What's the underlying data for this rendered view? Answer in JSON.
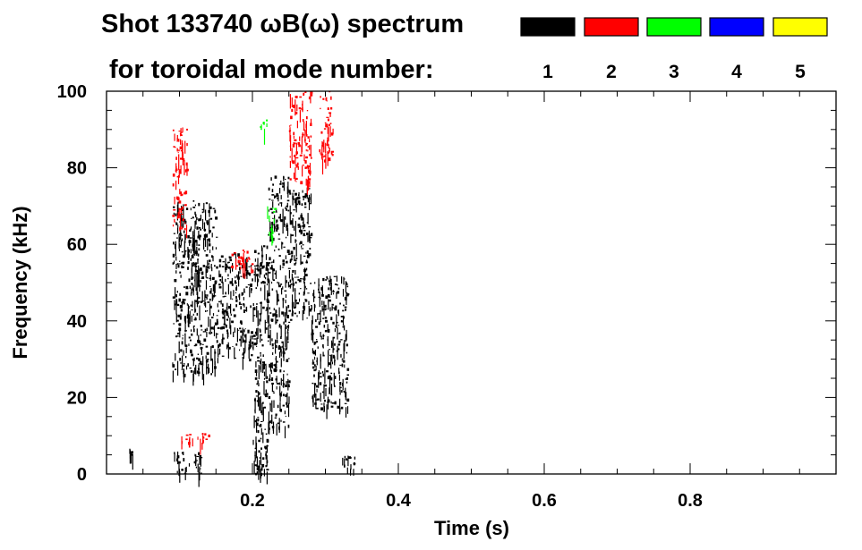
{
  "title_line1": "Shot 133740 ωB(ω) spectrum",
  "title_line2": "for toroidal mode number:",
  "chart_data": {
    "type": "heatmap",
    "title": "Shot 133740 ωB(ω) spectrum",
    "subtitle": "for toroidal mode number:",
    "xlabel": "Time (s)",
    "ylabel": "Frequency (kHz)",
    "xlim": [
      0.0,
      1.0
    ],
    "ylim": [
      0,
      100
    ],
    "xticks": [
      {
        "value": 0.2,
        "label": "0.2"
      },
      {
        "value": 0.4,
        "label": "0.4"
      },
      {
        "value": 0.6,
        "label": "0.6"
      },
      {
        "value": 0.8,
        "label": "0.8"
      }
    ],
    "yticks": [
      {
        "value": 0,
        "label": "0"
      },
      {
        "value": 20,
        "label": "20"
      },
      {
        "value": 40,
        "label": "40"
      },
      {
        "value": 60,
        "label": "60"
      },
      {
        "value": 80,
        "label": "80"
      },
      {
        "value": 100,
        "label": "100"
      }
    ],
    "legend_placement": "top-right",
    "modes": [
      {
        "label": "1",
        "color": "#000000"
      },
      {
        "label": "2",
        "color": "#ff0000"
      },
      {
        "label": "3",
        "color": "#00ff00"
      },
      {
        "label": "4",
        "color": "#0000ff"
      },
      {
        "label": "5",
        "color": "#ffff00"
      }
    ],
    "regions": [
      {
        "mode": "1",
        "t": [
          0.03,
          0.04
        ],
        "f": [
          4,
          7
        ]
      },
      {
        "mode": "1",
        "t": [
          0.09,
          0.15
        ],
        "f": [
          26,
          72
        ]
      },
      {
        "mode": "1",
        "t": [
          0.09,
          0.13
        ],
        "f": [
          0,
          6
        ]
      },
      {
        "mode": "1",
        "t": [
          0.15,
          0.2
        ],
        "f": [
          30,
          58
        ]
      },
      {
        "mode": "1",
        "t": [
          0.2,
          0.22
        ],
        "f": [
          0,
          60
        ]
      },
      {
        "mode": "1",
        "t": [
          0.22,
          0.25
        ],
        "f": [
          12,
          78
        ]
      },
      {
        "mode": "1",
        "t": [
          0.25,
          0.28
        ],
        "f": [
          40,
          75
        ]
      },
      {
        "mode": "1",
        "t": [
          0.28,
          0.33
        ],
        "f": [
          17,
          52
        ]
      },
      {
        "mode": "1",
        "t": [
          0.32,
          0.34
        ],
        "f": [
          0,
          5
        ]
      },
      {
        "mode": "2",
        "t": [
          0.09,
          0.11
        ],
        "f": [
          64,
          91
        ]
      },
      {
        "mode": "2",
        "t": [
          0.1,
          0.14
        ],
        "f": [
          8,
          11
        ]
      },
      {
        "mode": "2",
        "t": [
          0.17,
          0.2
        ],
        "f": [
          53,
          59
        ]
      },
      {
        "mode": "2",
        "t": [
          0.25,
          0.28
        ],
        "f": [
          76,
          100
        ]
      },
      {
        "mode": "2",
        "t": [
          0.29,
          0.31
        ],
        "f": [
          82,
          100
        ]
      },
      {
        "mode": "3",
        "t": [
          0.22,
          0.23
        ],
        "f": [
          62,
          70
        ]
      },
      {
        "mode": "3",
        "t": [
          0.21,
          0.22
        ],
        "f": [
          90,
          93
        ]
      }
    ]
  }
}
